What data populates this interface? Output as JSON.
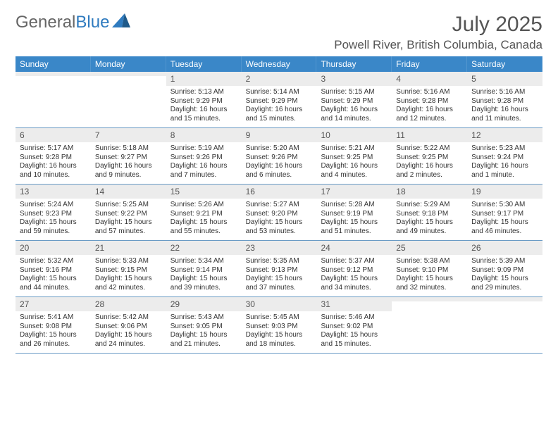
{
  "brand": {
    "part1": "General",
    "part2": "Blue"
  },
  "title": "July 2025",
  "location": "Powell River, British Columbia, Canada",
  "colors": {
    "header_bg": "#3a87c8",
    "header_text": "#ffffff",
    "daynum_bg": "#ececec",
    "week_border": "#6a9bc5",
    "brand_gray": "#666666",
    "brand_blue": "#2f7bbf"
  },
  "day_headers": [
    "Sunday",
    "Monday",
    "Tuesday",
    "Wednesday",
    "Thursday",
    "Friday",
    "Saturday"
  ],
  "weeks": [
    [
      {
        "day": "",
        "sunrise": "",
        "sunset": "",
        "daylight": ""
      },
      {
        "day": "",
        "sunrise": "",
        "sunset": "",
        "daylight": ""
      },
      {
        "day": "1",
        "sunrise": "Sunrise: 5:13 AM",
        "sunset": "Sunset: 9:29 PM",
        "daylight": "Daylight: 16 hours and 15 minutes."
      },
      {
        "day": "2",
        "sunrise": "Sunrise: 5:14 AM",
        "sunset": "Sunset: 9:29 PM",
        "daylight": "Daylight: 16 hours and 15 minutes."
      },
      {
        "day": "3",
        "sunrise": "Sunrise: 5:15 AM",
        "sunset": "Sunset: 9:29 PM",
        "daylight": "Daylight: 16 hours and 14 minutes."
      },
      {
        "day": "4",
        "sunrise": "Sunrise: 5:16 AM",
        "sunset": "Sunset: 9:28 PM",
        "daylight": "Daylight: 16 hours and 12 minutes."
      },
      {
        "day": "5",
        "sunrise": "Sunrise: 5:16 AM",
        "sunset": "Sunset: 9:28 PM",
        "daylight": "Daylight: 16 hours and 11 minutes."
      }
    ],
    [
      {
        "day": "6",
        "sunrise": "Sunrise: 5:17 AM",
        "sunset": "Sunset: 9:28 PM",
        "daylight": "Daylight: 16 hours and 10 minutes."
      },
      {
        "day": "7",
        "sunrise": "Sunrise: 5:18 AM",
        "sunset": "Sunset: 9:27 PM",
        "daylight": "Daylight: 16 hours and 9 minutes."
      },
      {
        "day": "8",
        "sunrise": "Sunrise: 5:19 AM",
        "sunset": "Sunset: 9:26 PM",
        "daylight": "Daylight: 16 hours and 7 minutes."
      },
      {
        "day": "9",
        "sunrise": "Sunrise: 5:20 AM",
        "sunset": "Sunset: 9:26 PM",
        "daylight": "Daylight: 16 hours and 6 minutes."
      },
      {
        "day": "10",
        "sunrise": "Sunrise: 5:21 AM",
        "sunset": "Sunset: 9:25 PM",
        "daylight": "Daylight: 16 hours and 4 minutes."
      },
      {
        "day": "11",
        "sunrise": "Sunrise: 5:22 AM",
        "sunset": "Sunset: 9:25 PM",
        "daylight": "Daylight: 16 hours and 2 minutes."
      },
      {
        "day": "12",
        "sunrise": "Sunrise: 5:23 AM",
        "sunset": "Sunset: 9:24 PM",
        "daylight": "Daylight: 16 hours and 1 minute."
      }
    ],
    [
      {
        "day": "13",
        "sunrise": "Sunrise: 5:24 AM",
        "sunset": "Sunset: 9:23 PM",
        "daylight": "Daylight: 15 hours and 59 minutes."
      },
      {
        "day": "14",
        "sunrise": "Sunrise: 5:25 AM",
        "sunset": "Sunset: 9:22 PM",
        "daylight": "Daylight: 15 hours and 57 minutes."
      },
      {
        "day": "15",
        "sunrise": "Sunrise: 5:26 AM",
        "sunset": "Sunset: 9:21 PM",
        "daylight": "Daylight: 15 hours and 55 minutes."
      },
      {
        "day": "16",
        "sunrise": "Sunrise: 5:27 AM",
        "sunset": "Sunset: 9:20 PM",
        "daylight": "Daylight: 15 hours and 53 minutes."
      },
      {
        "day": "17",
        "sunrise": "Sunrise: 5:28 AM",
        "sunset": "Sunset: 9:19 PM",
        "daylight": "Daylight: 15 hours and 51 minutes."
      },
      {
        "day": "18",
        "sunrise": "Sunrise: 5:29 AM",
        "sunset": "Sunset: 9:18 PM",
        "daylight": "Daylight: 15 hours and 49 minutes."
      },
      {
        "day": "19",
        "sunrise": "Sunrise: 5:30 AM",
        "sunset": "Sunset: 9:17 PM",
        "daylight": "Daylight: 15 hours and 46 minutes."
      }
    ],
    [
      {
        "day": "20",
        "sunrise": "Sunrise: 5:32 AM",
        "sunset": "Sunset: 9:16 PM",
        "daylight": "Daylight: 15 hours and 44 minutes."
      },
      {
        "day": "21",
        "sunrise": "Sunrise: 5:33 AM",
        "sunset": "Sunset: 9:15 PM",
        "daylight": "Daylight: 15 hours and 42 minutes."
      },
      {
        "day": "22",
        "sunrise": "Sunrise: 5:34 AM",
        "sunset": "Sunset: 9:14 PM",
        "daylight": "Daylight: 15 hours and 39 minutes."
      },
      {
        "day": "23",
        "sunrise": "Sunrise: 5:35 AM",
        "sunset": "Sunset: 9:13 PM",
        "daylight": "Daylight: 15 hours and 37 minutes."
      },
      {
        "day": "24",
        "sunrise": "Sunrise: 5:37 AM",
        "sunset": "Sunset: 9:12 PM",
        "daylight": "Daylight: 15 hours and 34 minutes."
      },
      {
        "day": "25",
        "sunrise": "Sunrise: 5:38 AM",
        "sunset": "Sunset: 9:10 PM",
        "daylight": "Daylight: 15 hours and 32 minutes."
      },
      {
        "day": "26",
        "sunrise": "Sunrise: 5:39 AM",
        "sunset": "Sunset: 9:09 PM",
        "daylight": "Daylight: 15 hours and 29 minutes."
      }
    ],
    [
      {
        "day": "27",
        "sunrise": "Sunrise: 5:41 AM",
        "sunset": "Sunset: 9:08 PM",
        "daylight": "Daylight: 15 hours and 26 minutes."
      },
      {
        "day": "28",
        "sunrise": "Sunrise: 5:42 AM",
        "sunset": "Sunset: 9:06 PM",
        "daylight": "Daylight: 15 hours and 24 minutes."
      },
      {
        "day": "29",
        "sunrise": "Sunrise: 5:43 AM",
        "sunset": "Sunset: 9:05 PM",
        "daylight": "Daylight: 15 hours and 21 minutes."
      },
      {
        "day": "30",
        "sunrise": "Sunrise: 5:45 AM",
        "sunset": "Sunset: 9:03 PM",
        "daylight": "Daylight: 15 hours and 18 minutes."
      },
      {
        "day": "31",
        "sunrise": "Sunrise: 5:46 AM",
        "sunset": "Sunset: 9:02 PM",
        "daylight": "Daylight: 15 hours and 15 minutes."
      },
      {
        "day": "",
        "sunrise": "",
        "sunset": "",
        "daylight": ""
      },
      {
        "day": "",
        "sunrise": "",
        "sunset": "",
        "daylight": ""
      }
    ]
  ]
}
